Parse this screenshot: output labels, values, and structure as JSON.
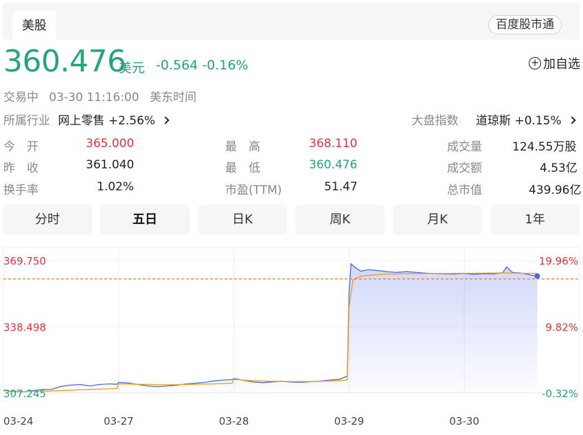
{
  "header": {
    "tab_label": "美股",
    "badge": "百度股市通"
  },
  "quote": {
    "price": "360.476",
    "unit": "美元",
    "change": "-0.564",
    "change_pct": "-0.16%"
  },
  "fav_label": "加自选",
  "status": {
    "state": "交易中",
    "time": "03-30 11:16:00",
    "zone": "美东时间"
  },
  "industry": {
    "label": "所属行业",
    "name": "网上零售",
    "change": "+2.56%"
  },
  "market_index": {
    "label": "大盘指数",
    "name": "道琼斯",
    "change": "+0.15%"
  },
  "stats": {
    "open_k": "今　开",
    "open_v": "365.000",
    "high_k": "最　高",
    "high_v": "368.110",
    "vol_k": "成交量",
    "vol_v": "124.55万股",
    "prev_k": "昨　收",
    "prev_v": "361.040",
    "low_k": "最　低",
    "low_v": "360.476",
    "amt_k": "成交额",
    "amt_v": "4.53亿",
    "turn_k": "换手率",
    "turn_v": "1.02%",
    "pe_k": "市盈(TTM)",
    "pe_v": "51.47",
    "cap_k": "总市值",
    "cap_v": "439.96亿"
  },
  "period_tabs": [
    "分时",
    "五日",
    "日K",
    "周K",
    "月K",
    "1年"
  ],
  "active_tab": 1,
  "colors": {
    "up": "#e2333c",
    "down": "#23a47b",
    "price_line": "#4a67e6",
    "avg_line": "#f0a020",
    "ref_line": "#e8743b"
  },
  "chart_data": {
    "type": "line",
    "x_labels": [
      "03-24",
      "03-27",
      "03-28",
      "03-29",
      "03-30"
    ],
    "y_labels_left": [
      "369.750",
      "338.498",
      "307.245"
    ],
    "y_labels_right": [
      "19.96%",
      "9.82%",
      "-0.32%"
    ],
    "ylim": [
      307.245,
      369.75
    ],
    "prev_close": 361.04,
    "series": [
      {
        "name": "price",
        "values": [
          [
            0.0,
            308.6
          ],
          [
            0.25,
            308.0
          ],
          [
            0.5,
            307.9
          ],
          [
            0.75,
            308.3
          ],
          [
            1.0,
            308.9
          ],
          [
            1.25,
            309.0
          ],
          [
            1.5,
            310.4
          ],
          [
            1.75,
            311.0
          ],
          [
            2.0,
            311.3
          ],
          [
            2.25,
            310.6
          ],
          [
            2.5,
            311.3
          ],
          [
            2.75,
            311.6
          ],
          [
            2.95,
            311.4
          ],
          [
            3.0,
            312.3
          ],
          [
            3.25,
            312.0
          ],
          [
            3.5,
            311.3
          ],
          [
            3.75,
            310.6
          ],
          [
            4.0,
            310.3
          ],
          [
            4.25,
            310.6
          ],
          [
            4.5,
            310.9
          ],
          [
            4.75,
            311.6
          ],
          [
            5.0,
            311.9
          ],
          [
            5.25,
            312.3
          ],
          [
            5.5,
            313.0
          ],
          [
            5.75,
            313.4
          ],
          [
            5.95,
            313.6
          ],
          [
            6.0,
            314.1
          ],
          [
            6.25,
            313.3
          ],
          [
            6.5,
            312.5
          ],
          [
            6.75,
            312.2
          ],
          [
            7.0,
            312.5
          ],
          [
            7.25,
            312.8
          ],
          [
            7.5,
            312.4
          ],
          [
            7.75,
            312.3
          ],
          [
            8.0,
            312.6
          ],
          [
            8.25,
            312.9
          ],
          [
            8.5,
            313.4
          ],
          [
            8.75,
            313.8
          ],
          [
            8.95,
            315.2
          ],
          [
            9.0,
            355.0
          ],
          [
            9.05,
            368.2
          ],
          [
            9.15,
            366.5
          ],
          [
            9.3,
            364.7
          ],
          [
            9.5,
            365.4
          ],
          [
            9.75,
            365.0
          ],
          [
            10.0,
            364.4
          ],
          [
            10.25,
            364.1
          ],
          [
            10.5,
            364.5
          ],
          [
            10.75,
            364.1
          ],
          [
            11.0,
            363.8
          ],
          [
            11.25,
            363.5
          ],
          [
            11.5,
            363.4
          ],
          [
            11.75,
            363.3
          ],
          [
            11.95,
            363.6
          ],
          [
            12.0,
            363.6
          ],
          [
            12.25,
            363.2
          ],
          [
            12.5,
            363.5
          ],
          [
            12.75,
            363.4
          ],
          [
            13.0,
            364.0
          ],
          [
            13.1,
            366.7
          ],
          [
            13.25,
            364.1
          ],
          [
            13.5,
            363.8
          ],
          [
            13.75,
            362.8
          ],
          [
            13.9,
            362.4
          ]
        ]
      },
      {
        "name": "avg",
        "values": [
          [
            0.0,
            308.4
          ],
          [
            0.5,
            308.0
          ],
          [
            1.0,
            308.1
          ],
          [
            1.5,
            308.4
          ],
          [
            2.0,
            308.8
          ],
          [
            2.5,
            309.1
          ],
          [
            2.95,
            309.4
          ],
          [
            3.0,
            311.6
          ],
          [
            3.5,
            311.4
          ],
          [
            4.0,
            311.2
          ],
          [
            4.5,
            311.2
          ],
          [
            5.0,
            311.4
          ],
          [
            5.5,
            311.6
          ],
          [
            5.95,
            311.9
          ],
          [
            6.0,
            313.7
          ],
          [
            6.5,
            313.1
          ],
          [
            7.0,
            312.8
          ],
          [
            7.5,
            312.7
          ],
          [
            8.0,
            312.7
          ],
          [
            8.5,
            312.9
          ],
          [
            8.95,
            313.4
          ],
          [
            9.0,
            348.0
          ],
          [
            9.1,
            360.5
          ],
          [
            9.3,
            362.3
          ],
          [
            9.6,
            362.9
          ],
          [
            10.0,
            363.3
          ],
          [
            10.5,
            363.5
          ],
          [
            11.0,
            363.6
          ],
          [
            11.5,
            363.6
          ],
          [
            11.95,
            363.7
          ],
          [
            12.0,
            363.7
          ],
          [
            12.5,
            363.8
          ],
          [
            13.0,
            363.9
          ],
          [
            13.5,
            363.7
          ],
          [
            13.9,
            363.6
          ]
        ]
      }
    ]
  }
}
